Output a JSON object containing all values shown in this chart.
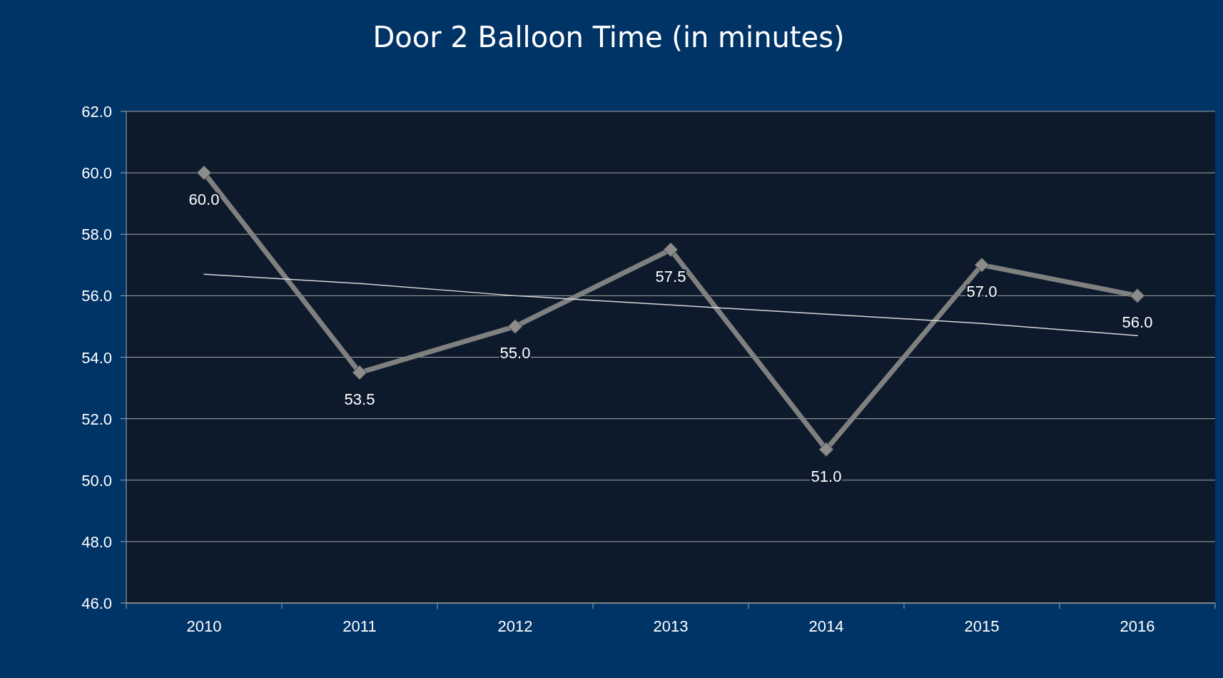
{
  "chart_data": {
    "type": "line",
    "title": "Door 2 Balloon Time (in minutes)",
    "categories": [
      "2010",
      "2011",
      "2012",
      "2013",
      "2014",
      "2015",
      "2016"
    ],
    "series": [
      {
        "color": "#808080",
        "values": [
          60.0,
          53.5,
          55.0,
          57.5,
          51.0,
          57.0,
          56.0
        ],
        "value_labels": [
          "60.0",
          "53.5",
          "55.0",
          "57.5",
          "51.0",
          "57.0",
          "56.0"
        ],
        "marker": "diamond"
      },
      {
        "type": "line",
        "color": "#d9d9d9",
        "values": [
          56.7,
          56.4,
          56.0,
          55.7,
          55.4,
          55.1,
          54.7
        ],
        "marker": "none"
      }
    ],
    "ylim": [
      46,
      62
    ],
    "yticks": [
      {
        "value": 46,
        "label": "46.0"
      },
      {
        "value": 48,
        "label": "48.0"
      },
      {
        "value": 50,
        "label": "50.0"
      },
      {
        "value": 52,
        "label": "52.0"
      },
      {
        "value": 54,
        "label": "54.0"
      },
      {
        "value": 56,
        "label": "56.0"
      },
      {
        "value": 58,
        "label": "58.0"
      },
      {
        "value": 60,
        "label": "60.0"
      },
      {
        "value": 62,
        "label": "62.0"
      }
    ],
    "grid": "y",
    "line_style": "solid"
  }
}
